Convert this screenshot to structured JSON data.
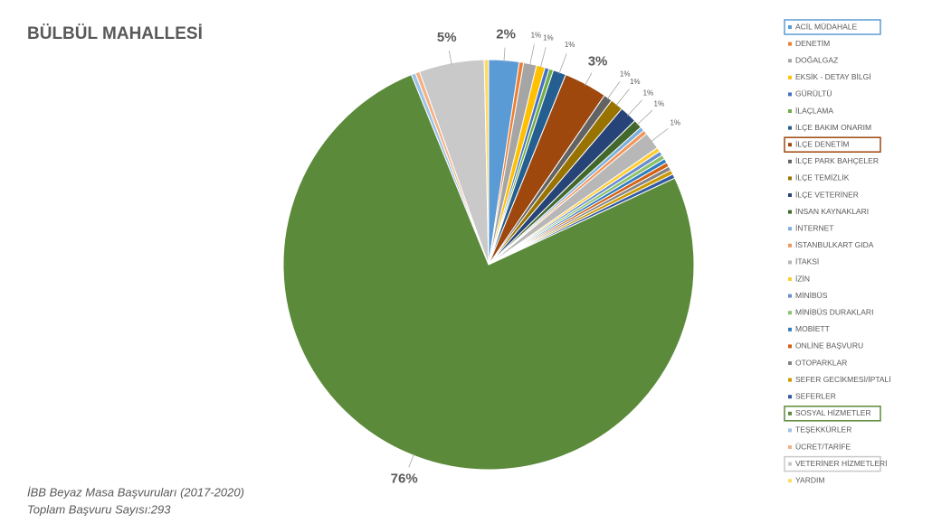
{
  "chart_data": {
    "type": "pie",
    "title": "BÜLBÜL MAHALLESİ",
    "notes": [
      "İBB Beyaz Masa Başvuruları (2017-2020)",
      "Toplam Başvuru Sayısı:293"
    ],
    "categories": [
      "ACİL MÜDAHALE",
      "DENETİM",
      "DOĞALGAZ",
      "EKSİK - DETAY BİLGİ",
      "GÜRÜLTÜ",
      "İLAÇLAMA",
      "İLÇE BAKIM ONARIM",
      "İLÇE DENETİM",
      "İLÇE PARK BAHÇELER",
      "İLÇE TEMİZLİK",
      "İLÇE VETERİNER",
      "İNSAN KAYNAKLARI",
      "İNTERNET",
      "İSTANBULKART GIDA",
      "İTAKSİ",
      "İZİN",
      "MİNİBÜS",
      "MİNİBÜS DURAKLARI",
      "MOBİETT",
      "ONLİNE BAŞVURU",
      "OTOPARKLAR",
      "SEFER GECİKMESİ/İPTALİ",
      "SEFERLER",
      "SOSYAL HİZMETLER",
      "TEŞEKKÜRLER",
      "ÜCRET/TARİFE",
      "VETERİNER HİZMETLERİ",
      "YARDIM"
    ],
    "values": [
      2.39,
      0.34,
      1.02,
      0.68,
      0.34,
      0.34,
      1.02,
      3.41,
      0.68,
      1.02,
      1.37,
      0.68,
      0.34,
      0.34,
      1.37,
      0.34,
      0.34,
      0.34,
      0.34,
      0.34,
      0.34,
      0.34,
      0.34,
      75.77,
      0.34,
      0.34,
      5.12,
      0.34
    ],
    "value_labels": [
      "2%",
      null,
      "1%",
      "1%",
      null,
      null,
      "1%",
      "3%",
      "1%",
      "1%",
      "1%",
      "1%",
      null,
      null,
      "1%",
      null,
      null,
      null,
      null,
      null,
      null,
      null,
      null,
      "76%",
      null,
      null,
      "5%",
      null
    ],
    "colors": [
      "#5b9bd5",
      "#ed7d31",
      "#a5a5a5",
      "#ffc000",
      "#4472c4",
      "#70ad47",
      "#255e91",
      "#9e480e",
      "#636363",
      "#997300",
      "#264478",
      "#43682b",
      "#7cafdd",
      "#f1975a",
      "#b7b7b7",
      "#ffcd33",
      "#698ed0",
      "#8cc168",
      "#327dc2",
      "#d26012",
      "#848484",
      "#cc9a00",
      "#335aa1",
      "#5b8a3a",
      "#9dc3e6",
      "#f4b183",
      "#c9c9c9",
      "#ffd966"
    ],
    "legend_highlight": [
      0,
      7,
      23,
      26
    ]
  }
}
